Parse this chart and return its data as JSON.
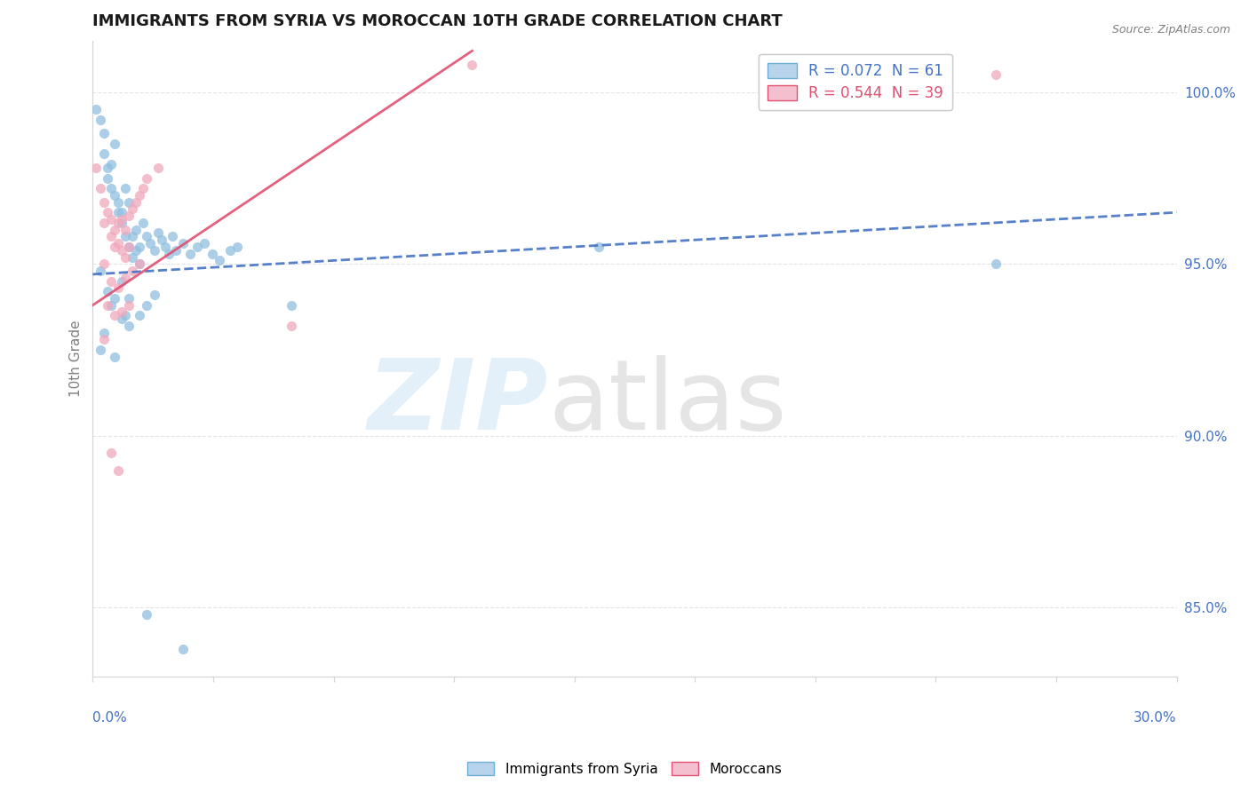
{
  "title": "IMMIGRANTS FROM SYRIA VS MOROCCAN 10TH GRADE CORRELATION CHART",
  "source_text": "Source: ZipAtlas.com",
  "ylabel": "10th Grade",
  "xlim": [
    0.0,
    30.0
  ],
  "ylim": [
    83.0,
    101.5
  ],
  "yticks": [
    85.0,
    90.0,
    95.0,
    100.0
  ],
  "ytick_labels": [
    "85.0%",
    "90.0%",
    "95.0%",
    "100.0%"
  ],
  "legend_bottom_labels": [
    "Immigrants from Syria",
    "Moroccans"
  ],
  "syria_color": "#90bfe0",
  "morocco_color": "#f0a8bc",
  "syria_trend_color": "#4472C4",
  "morocco_trend_color": "#e05070",
  "syria_trend_x": [
    0.0,
    30.0
  ],
  "syria_trend_y": [
    94.7,
    96.5
  ],
  "morocco_trend_x": [
    0.0,
    10.5
  ],
  "morocco_trend_y": [
    93.8,
    101.2
  ],
  "syria_points": [
    [
      0.1,
      99.5
    ],
    [
      0.2,
      99.2
    ],
    [
      0.3,
      98.8
    ],
    [
      0.3,
      98.2
    ],
    [
      0.4,
      97.8
    ],
    [
      0.4,
      97.5
    ],
    [
      0.5,
      97.9
    ],
    [
      0.5,
      97.2
    ],
    [
      0.6,
      98.5
    ],
    [
      0.6,
      97.0
    ],
    [
      0.7,
      96.8
    ],
    [
      0.7,
      96.5
    ],
    [
      0.8,
      96.5
    ],
    [
      0.8,
      96.2
    ],
    [
      0.9,
      97.2
    ],
    [
      0.9,
      95.8
    ],
    [
      1.0,
      96.8
    ],
    [
      1.0,
      95.5
    ],
    [
      1.1,
      95.8
    ],
    [
      1.1,
      95.2
    ],
    [
      1.2,
      96.0
    ],
    [
      1.2,
      95.4
    ],
    [
      1.3,
      95.5
    ],
    [
      1.3,
      95.0
    ],
    [
      1.4,
      96.2
    ],
    [
      1.5,
      95.8
    ],
    [
      1.6,
      95.6
    ],
    [
      1.7,
      95.4
    ],
    [
      1.8,
      95.9
    ],
    [
      1.9,
      95.7
    ],
    [
      2.0,
      95.5
    ],
    [
      2.1,
      95.3
    ],
    [
      2.2,
      95.8
    ],
    [
      2.3,
      95.4
    ],
    [
      2.5,
      95.6
    ],
    [
      2.7,
      95.3
    ],
    [
      2.9,
      95.5
    ],
    [
      3.1,
      95.6
    ],
    [
      3.3,
      95.3
    ],
    [
      3.5,
      95.1
    ],
    [
      3.8,
      95.4
    ],
    [
      4.0,
      95.5
    ],
    [
      0.2,
      94.8
    ],
    [
      0.4,
      94.2
    ],
    [
      0.5,
      93.8
    ],
    [
      0.6,
      94.0
    ],
    [
      0.8,
      94.5
    ],
    [
      0.9,
      93.5
    ],
    [
      1.0,
      94.0
    ],
    [
      1.3,
      93.5
    ],
    [
      1.5,
      93.8
    ],
    [
      1.7,
      94.1
    ],
    [
      0.3,
      93.0
    ],
    [
      0.8,
      93.4
    ],
    [
      1.0,
      93.2
    ],
    [
      0.2,
      92.5
    ],
    [
      0.6,
      92.3
    ],
    [
      5.5,
      93.8
    ],
    [
      1.5,
      84.8
    ],
    [
      2.5,
      83.8
    ],
    [
      25.0,
      95.0
    ],
    [
      14.0,
      95.5
    ]
  ],
  "morocco_points": [
    [
      0.1,
      97.8
    ],
    [
      0.2,
      97.2
    ],
    [
      0.3,
      96.8
    ],
    [
      0.3,
      96.2
    ],
    [
      0.4,
      96.5
    ],
    [
      0.5,
      96.3
    ],
    [
      0.5,
      95.8
    ],
    [
      0.6,
      96.0
    ],
    [
      0.6,
      95.5
    ],
    [
      0.7,
      96.2
    ],
    [
      0.7,
      95.6
    ],
    [
      0.8,
      96.3
    ],
    [
      0.8,
      95.4
    ],
    [
      0.9,
      96.0
    ],
    [
      0.9,
      95.2
    ],
    [
      1.0,
      96.4
    ],
    [
      1.0,
      95.5
    ],
    [
      1.1,
      96.6
    ],
    [
      1.2,
      96.8
    ],
    [
      1.3,
      97.0
    ],
    [
      1.4,
      97.2
    ],
    [
      1.5,
      97.5
    ],
    [
      1.8,
      97.8
    ],
    [
      0.3,
      95.0
    ],
    [
      0.5,
      94.5
    ],
    [
      0.7,
      94.3
    ],
    [
      0.9,
      94.6
    ],
    [
      1.1,
      94.8
    ],
    [
      1.3,
      95.0
    ],
    [
      0.4,
      93.8
    ],
    [
      0.6,
      93.5
    ],
    [
      0.8,
      93.6
    ],
    [
      1.0,
      93.8
    ],
    [
      0.3,
      92.8
    ],
    [
      0.5,
      89.5
    ],
    [
      0.7,
      89.0
    ],
    [
      10.5,
      100.8
    ],
    [
      25.0,
      100.5
    ],
    [
      5.5,
      93.2
    ]
  ]
}
